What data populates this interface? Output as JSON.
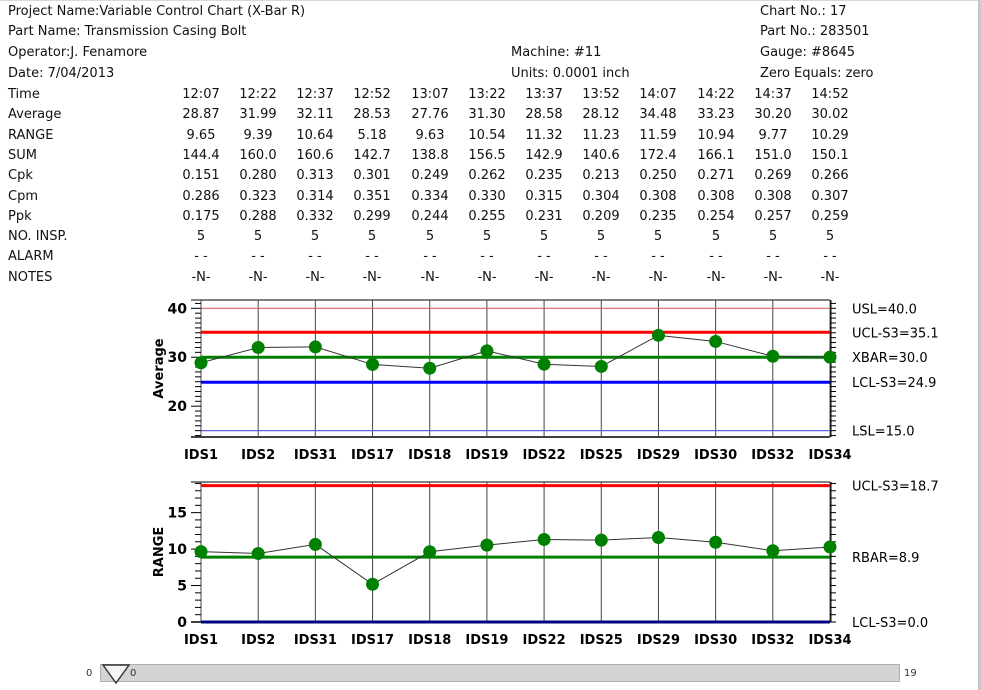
{
  "header": {
    "project_name": "Project Name:Variable Control Chart (X-Bar R)",
    "part_name": "Part Name: Transmission Casing Bolt",
    "operator": "Operator:J. Fenamore",
    "date": "Date: 7/04/2013",
    "machine": "Machine: #11",
    "units": "Units: 0.0001 inch",
    "chart_no": "Chart No.: 17",
    "part_no": "Part No.: 283501",
    "gauge": "Gauge: #8645",
    "zero_equals": "Zero Equals: zero"
  },
  "table": {
    "rows": [
      {
        "label": "Time",
        "values": [
          "12:07",
          "12:22",
          "12:37",
          "12:52",
          "13:07",
          "13:22",
          "13:37",
          "13:52",
          "14:07",
          "14:22",
          "14:37",
          "14:52"
        ]
      },
      {
        "label": "Average",
        "values": [
          "28.87",
          "31.99",
          "32.11",
          "28.53",
          "27.76",
          "31.30",
          "28.58",
          "28.12",
          "34.48",
          "33.23",
          "30.20",
          "30.02"
        ]
      },
      {
        "label": "RANGE",
        "values": [
          "9.65",
          "9.39",
          "10.64",
          "5.18",
          "9.63",
          "10.54",
          "11.32",
          "11.23",
          "11.59",
          "10.94",
          "9.77",
          "10.29"
        ]
      },
      {
        "label": "SUM",
        "values": [
          "144.4",
          "160.0",
          "160.6",
          "142.7",
          "138.8",
          "156.5",
          "142.9",
          "140.6",
          "172.4",
          "166.1",
          "151.0",
          "150.1"
        ]
      },
      {
        "label": "Cpk",
        "values": [
          "0.151",
          "0.280",
          "0.313",
          "0.301",
          "0.249",
          "0.262",
          "0.235",
          "0.213",
          "0.250",
          "0.271",
          "0.269",
          "0.266"
        ]
      },
      {
        "label": "Cpm",
        "values": [
          "0.286",
          "0.323",
          "0.314",
          "0.351",
          "0.334",
          "0.330",
          "0.315",
          "0.304",
          "0.308",
          "0.308",
          "0.308",
          "0.307"
        ]
      },
      {
        "label": "Ppk",
        "values": [
          "0.175",
          "0.288",
          "0.332",
          "0.299",
          "0.244",
          "0.255",
          "0.231",
          "0.209",
          "0.235",
          "0.254",
          "0.257",
          "0.259"
        ]
      },
      {
        "label": "NO. INSP.",
        "values": [
          "5",
          "5",
          "5",
          "5",
          "5",
          "5",
          "5",
          "5",
          "5",
          "5",
          "5",
          "5"
        ]
      },
      {
        "label": "ALARM",
        "values": [
          "-  -",
          "-  -",
          "-  -",
          "-  -",
          "-  -",
          "-  -",
          "-  -",
          "-  -",
          "-  -",
          "-  -",
          "-  -",
          "-  -"
        ]
      },
      {
        "label": "NOTES",
        "values": [
          "-N-",
          "-N-",
          "-N-",
          "-N-",
          "-N-",
          "-N-",
          "-N-",
          "-N-",
          "-N-",
          "-N-",
          "-N-",
          "-N-"
        ]
      }
    ]
  },
  "chart_data": [
    {
      "type": "line",
      "ylabel": "Average",
      "categories": [
        "IDS1",
        "IDS2",
        "IDS31",
        "IDS17",
        "IDS18",
        "IDS19",
        "IDS22",
        "IDS25",
        "IDS29",
        "IDS30",
        "IDS32",
        "IDS34"
      ],
      "values": [
        28.87,
        31.99,
        32.11,
        28.53,
        27.76,
        31.3,
        28.58,
        28.12,
        34.48,
        33.23,
        30.2,
        30.02
      ],
      "ylim": [
        13.7,
        41.7
      ],
      "yticks": [
        20,
        30,
        40
      ],
      "grid": true,
      "reference_lines": [
        {
          "label": "USL=40.0",
          "value": 40.0,
          "color": "#e06060",
          "weight": "thin"
        },
        {
          "label": "UCL-S3=35.1",
          "value": 35.1,
          "color": "#ff0000",
          "weight": "thick"
        },
        {
          "label": "XBAR=30.0",
          "value": 30.0,
          "color": "#008000",
          "weight": "thick"
        },
        {
          "label": "LCL-S3=24.9",
          "value": 24.9,
          "color": "#0000ff",
          "weight": "thick"
        },
        {
          "label": "LSL=15.0",
          "value": 15.0,
          "color": "#6060e0",
          "weight": "thin"
        }
      ],
      "series_color": "#008000",
      "marker_color": "#008000"
    },
    {
      "type": "line",
      "ylabel": "RANGE",
      "categories": [
        "IDS1",
        "IDS2",
        "IDS31",
        "IDS17",
        "IDS18",
        "IDS19",
        "IDS22",
        "IDS25",
        "IDS29",
        "IDS30",
        "IDS32",
        "IDS34"
      ],
      "values": [
        9.65,
        9.39,
        10.64,
        5.18,
        9.63,
        10.54,
        11.32,
        11.23,
        11.59,
        10.94,
        9.77,
        10.29
      ],
      "ylim": [
        0,
        19.2
      ],
      "yticks": [
        0,
        5,
        10,
        15
      ],
      "grid": true,
      "reference_lines": [
        {
          "label": "UCL-S3=18.7",
          "value": 18.7,
          "color": "#ff0000",
          "weight": "thick"
        },
        {
          "label": "RBAR=8.9",
          "value": 8.9,
          "color": "#008000",
          "weight": "thick"
        },
        {
          "label": "LCL-S3=0.0",
          "value": 0.0,
          "color": "#000080",
          "weight": "thick"
        }
      ],
      "series_color": "#008000",
      "marker_color": "#008000"
    }
  ],
  "slider": {
    "min": "0",
    "max": "19",
    "value": "0"
  }
}
